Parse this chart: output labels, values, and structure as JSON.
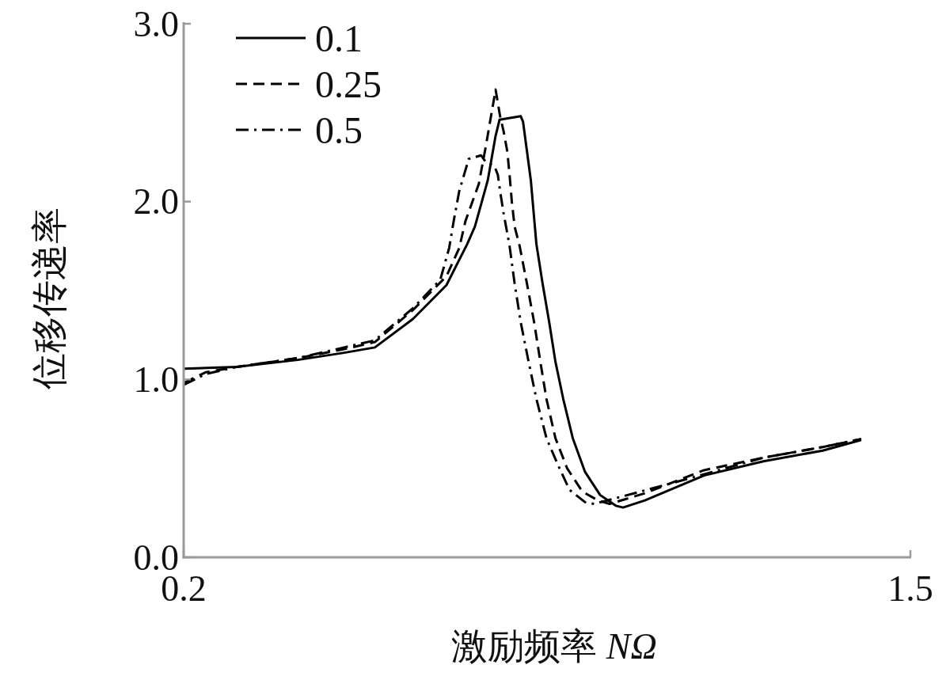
{
  "chart_data": {
    "type": "line",
    "xlabel": "激励频率 NΩ",
    "ylabel": "位移传递率",
    "xlim": [
      0.2,
      1.5
    ],
    "ylim": [
      0,
      3
    ],
    "xticks": [
      0.2,
      1.5
    ],
    "yticks": [
      {
        "value": 0,
        "label": "0.0"
      },
      {
        "value": 1,
        "label": "1.0"
      },
      {
        "value": 2,
        "label": "2.0"
      },
      {
        "value": 3,
        "label": "3.0"
      }
    ],
    "legend": "top left",
    "series": [
      {
        "name": "0.1",
        "color": "#000000",
        "line_style": "solid",
        "x": [
          0.2,
          0.294,
          0.404,
          0.487,
          0.542,
          0.61,
          0.67,
          0.707,
          0.721,
          0.744,
          0.758,
          0.765,
          0.803,
          0.807,
          0.821,
          0.831,
          0.842,
          0.854,
          0.865,
          0.879,
          0.896,
          0.918,
          0.945,
          0.973,
          0.986,
          1.025,
          1.131,
          1.237,
          1.343,
          1.412
        ],
        "values": [
          1.06,
          1.07,
          1.11,
          1.15,
          1.18,
          1.34,
          1.53,
          1.76,
          1.86,
          2.12,
          2.37,
          2.46,
          2.48,
          2.45,
          2.12,
          1.76,
          1.54,
          1.32,
          1.1,
          0.89,
          0.67,
          0.48,
          0.35,
          0.29,
          0.28,
          0.32,
          0.46,
          0.54,
          0.6,
          0.66
        ]
      },
      {
        "name": "0.25",
        "color": "#000000",
        "line_style": "dashed",
        "x": [
          0.2,
          0.239,
          0.294,
          0.404,
          0.487,
          0.542,
          0.61,
          0.67,
          0.693,
          0.704,
          0.728,
          0.741,
          0.758,
          0.766,
          0.772,
          0.779,
          0.783,
          0.787,
          0.792,
          0.801,
          0.814,
          0.827,
          0.838,
          0.849,
          0.865,
          0.886,
          0.913,
          0.941,
          0.962,
          1.025,
          1.131,
          1.237,
          1.343,
          1.412
        ],
        "values": [
          0.98,
          1.04,
          1.07,
          1.12,
          1.17,
          1.21,
          1.39,
          1.58,
          1.74,
          1.89,
          2.1,
          2.32,
          2.63,
          2.48,
          2.4,
          2.28,
          2.15,
          2.0,
          1.86,
          1.75,
          1.54,
          1.32,
          1.1,
          0.89,
          0.67,
          0.5,
          0.37,
          0.32,
          0.3,
          0.36,
          0.49,
          0.56,
          0.62,
          0.665
        ]
      },
      {
        "name": "0.5",
        "color": "#000000",
        "line_style": "dashdot",
        "x": [
          0.2,
          0.239,
          0.294,
          0.404,
          0.487,
          0.542,
          0.61,
          0.659,
          0.675,
          0.683,
          0.693,
          0.71,
          0.732,
          0.741,
          0.756,
          0.762,
          0.766,
          0.772,
          0.783,
          0.792,
          0.803,
          0.817,
          0.831,
          0.849,
          0.868,
          0.89,
          0.918,
          0.934,
          0.982,
          1.077,
          1.237,
          1.343,
          1.412
        ],
        "values": [
          0.97,
          1.03,
          1.07,
          1.12,
          1.18,
          1.22,
          1.4,
          1.56,
          1.74,
          1.89,
          2.06,
          2.24,
          2.26,
          2.22,
          2.2,
          2.15,
          2.06,
          1.94,
          1.75,
          1.54,
          1.32,
          1.1,
          0.89,
          0.67,
          0.53,
          0.38,
          0.31,
          0.3,
          0.34,
          0.42,
          0.56,
          0.62,
          0.665
        ]
      }
    ]
  }
}
